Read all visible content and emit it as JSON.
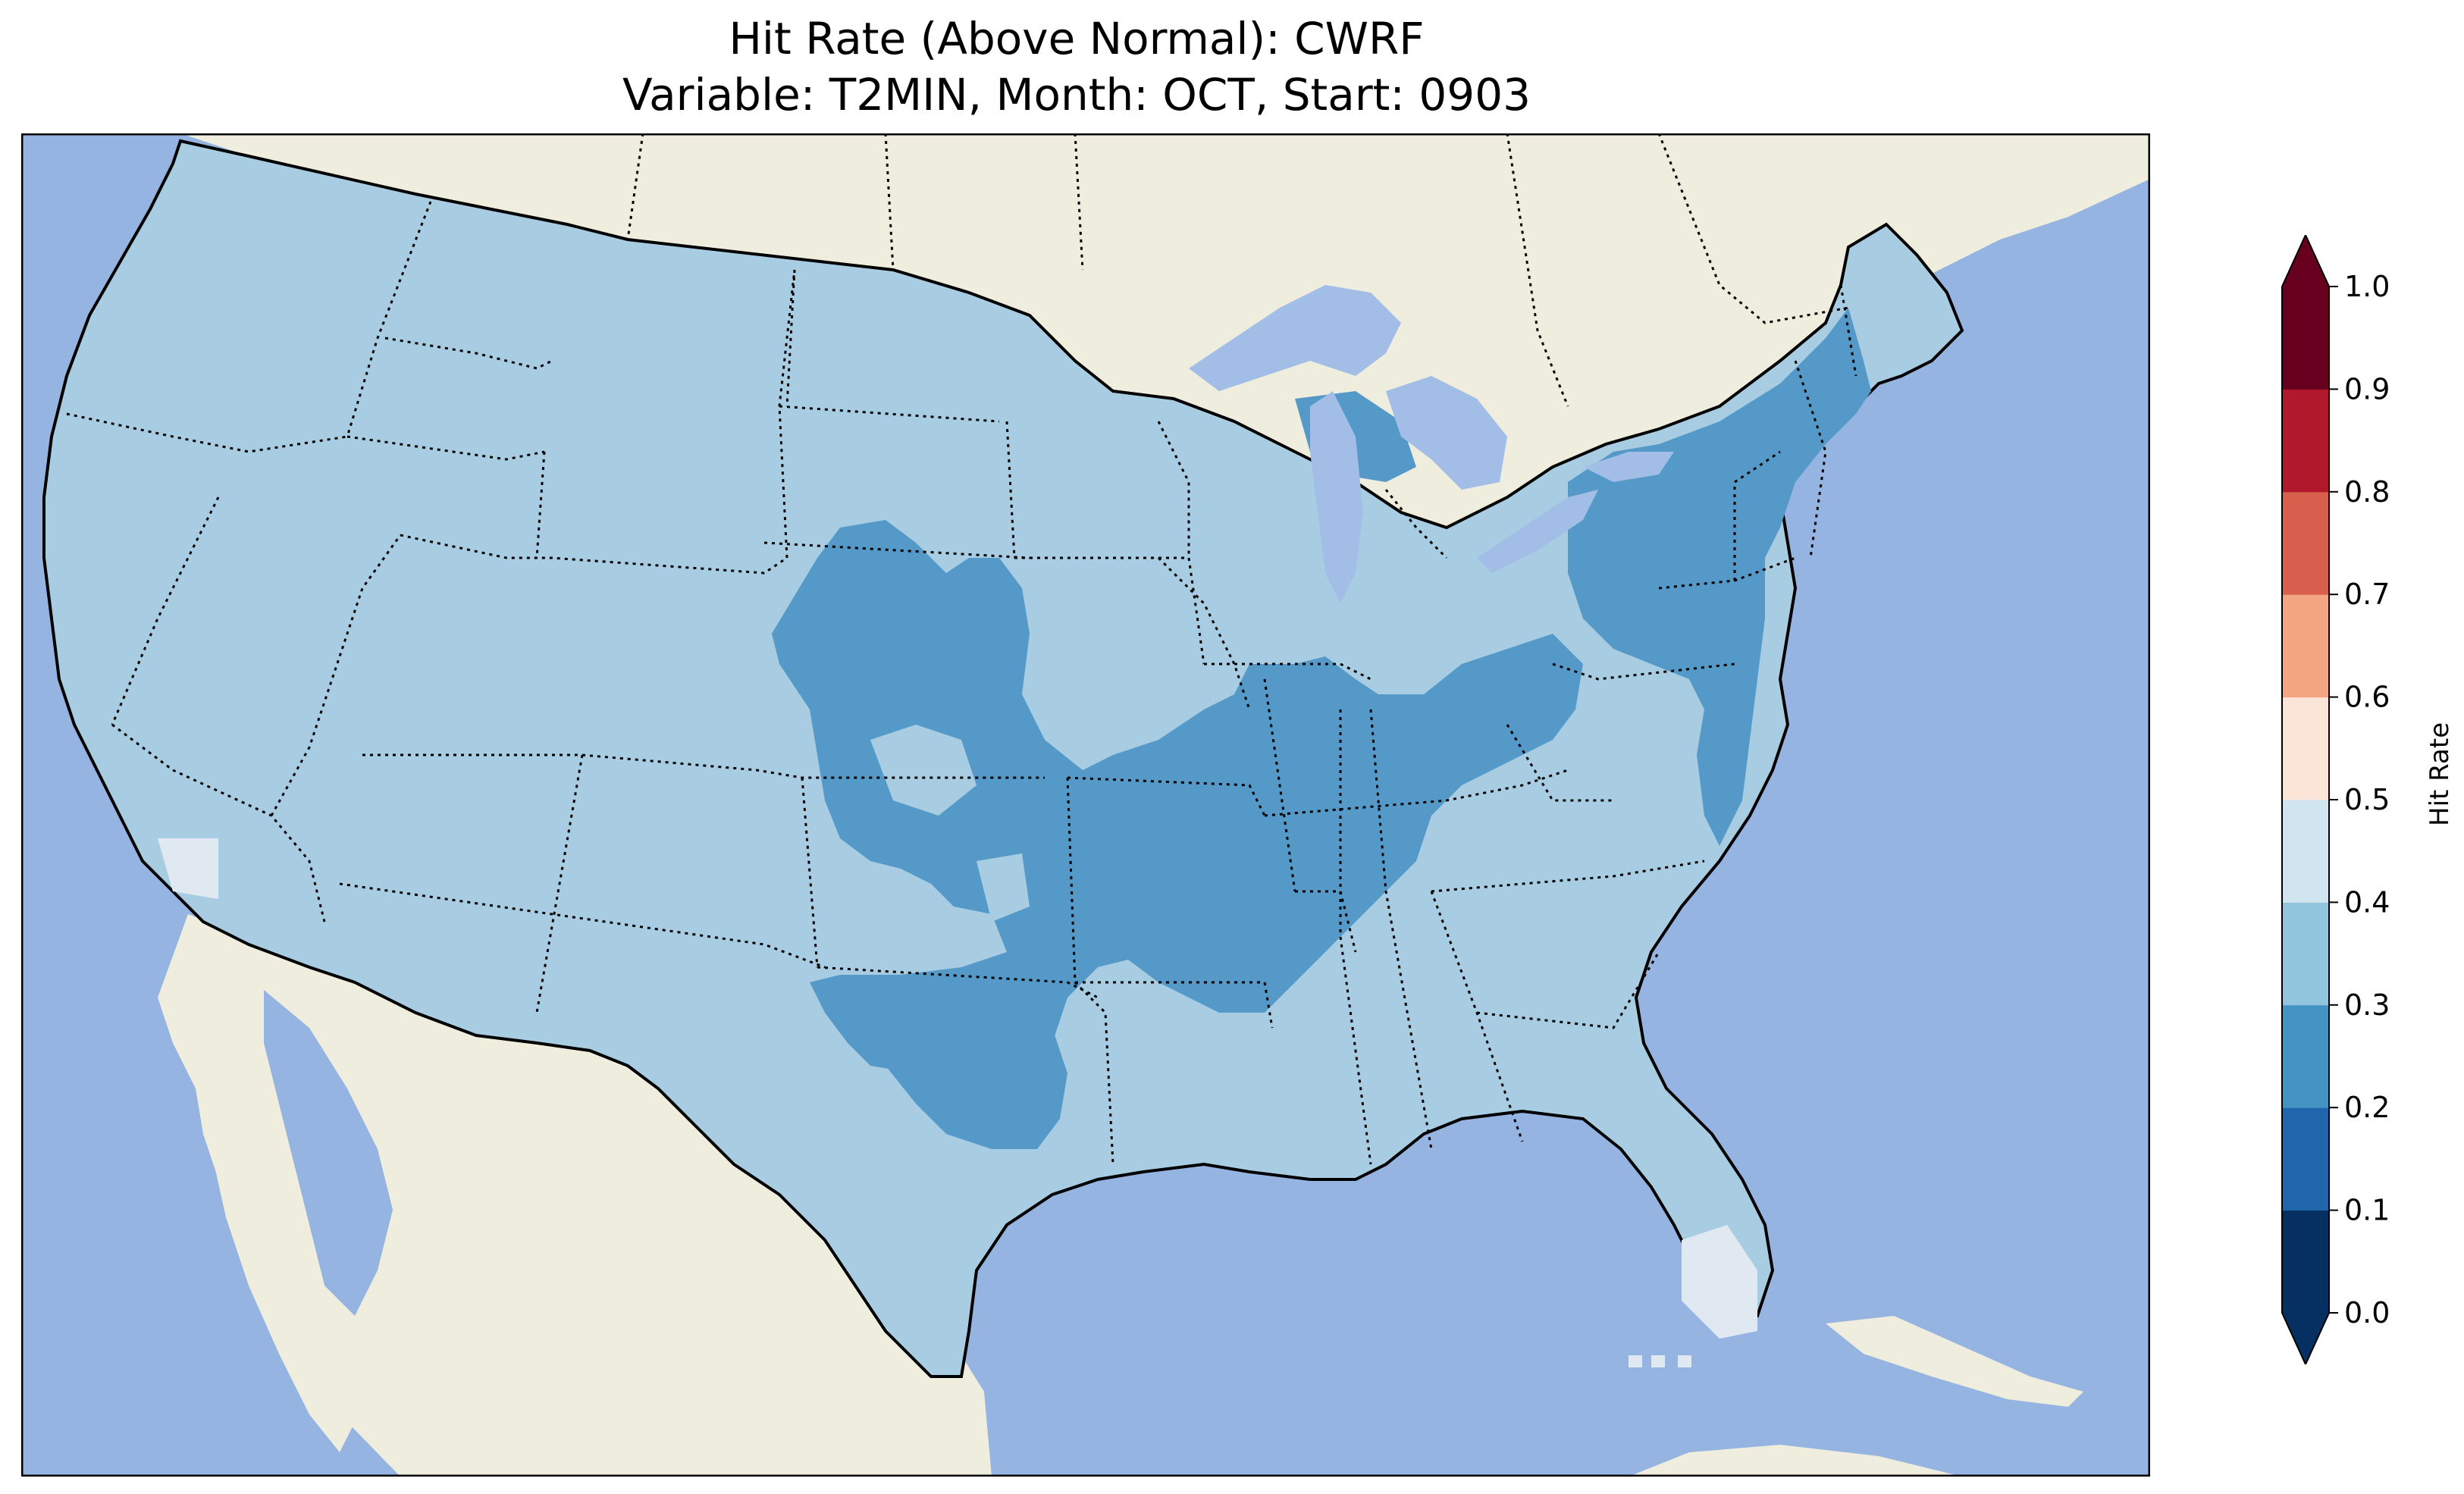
{
  "title": {
    "line1": "Hit Rate (Above Normal): CWRF",
    "line2": "Variable: T2MIN, Month: OCT, Start: 0903"
  },
  "map": {
    "region": "Contiguous United States",
    "colors": {
      "ocean": "#95b4e1",
      "land": "#efedde",
      "lake": "#a2bde6",
      "class_0_3_0_4": "#a8cde2",
      "class_0_2_0_3": "#5499c8",
      "class_0_4_0_5": "#e0e9f1"
    }
  },
  "colorbar": {
    "label": "Hit Rate",
    "ticks": [
      "0.0",
      "0.1",
      "0.2",
      "0.3",
      "0.4",
      "0.5",
      "0.6",
      "0.7",
      "0.8",
      "0.9",
      "1.0"
    ],
    "colors": [
      "#053061",
      "#2166ac",
      "#4393c3",
      "#92c5de",
      "#d1e5f0",
      "#fbe4d8",
      "#f4a582",
      "#d6604d",
      "#b2182b",
      "#67001f"
    ],
    "under_color": "#053061",
    "over_color": "#67001f"
  }
}
